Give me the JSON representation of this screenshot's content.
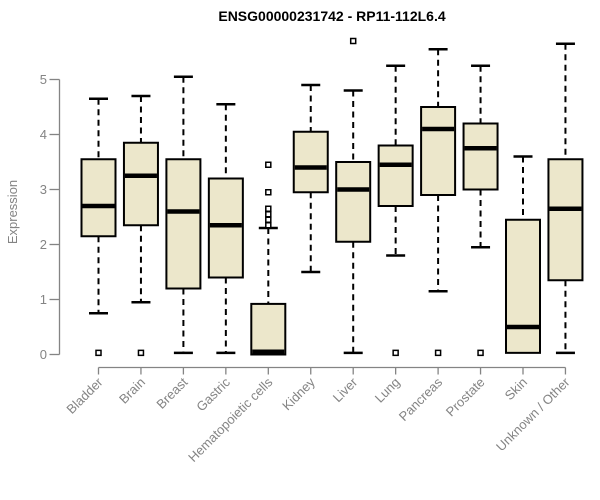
{
  "title": "ENSG00000231742 - RP11-112L6.4",
  "chart_data": {
    "type": "boxplot",
    "title": "ENSG00000231742 - RP11-112L6.4",
    "xlabel": "",
    "ylabel": "Expression",
    "ylim": [
      0,
      5.8
    ],
    "yticks": [
      0,
      1,
      2,
      3,
      4,
      5
    ],
    "grid": false,
    "legend": "none",
    "categories": [
      "Bladder",
      "Brain",
      "Breast",
      "Gastric",
      "Hematopoietic cells",
      "Kidney",
      "Liver",
      "Lung",
      "Pancreas",
      "Prostate",
      "Skin",
      "Unknown / Other"
    ],
    "boxes": [
      {
        "label": "Bladder",
        "whisker_low": 0.75,
        "q1": 2.15,
        "median": 2.7,
        "q3": 3.55,
        "whisker_high": 4.65,
        "outliers": [
          0.03
        ]
      },
      {
        "label": "Brain",
        "whisker_low": 0.95,
        "q1": 2.35,
        "median": 3.25,
        "q3": 3.85,
        "whisker_high": 4.7,
        "outliers": [
          0.03
        ]
      },
      {
        "label": "Breast",
        "whisker_low": 0.03,
        "q1": 1.2,
        "median": 2.6,
        "q3": 3.55,
        "whisker_high": 5.05,
        "outliers": []
      },
      {
        "label": "Gastric",
        "whisker_low": 0.03,
        "q1": 1.4,
        "median": 2.35,
        "q3": 3.2,
        "whisker_high": 4.55,
        "outliers": []
      },
      {
        "label": "Hematopoietic cells",
        "whisker_low": 0.0,
        "q1": 0.0,
        "median": 0.05,
        "q3": 0.92,
        "whisker_high": 2.3,
        "outliers": [
          2.35,
          2.45,
          2.55,
          2.65,
          2.95,
          3.45
        ]
      },
      {
        "label": "Kidney",
        "whisker_low": 1.5,
        "q1": 2.95,
        "median": 3.4,
        "q3": 4.05,
        "whisker_high": 4.9,
        "outliers": []
      },
      {
        "label": "Liver",
        "whisker_low": 0.03,
        "q1": 2.05,
        "median": 3.0,
        "q3": 3.5,
        "whisker_high": 4.8,
        "outliers": [
          5.7
        ]
      },
      {
        "label": "Lung",
        "whisker_low": 1.8,
        "q1": 2.7,
        "median": 3.45,
        "q3": 3.8,
        "whisker_high": 5.25,
        "outliers": [
          0.03
        ]
      },
      {
        "label": "Pancreas",
        "whisker_low": 1.15,
        "q1": 2.9,
        "median": 4.1,
        "q3": 4.5,
        "whisker_high": 5.55,
        "outliers": [
          0.03
        ]
      },
      {
        "label": "Prostate",
        "whisker_low": 1.95,
        "q1": 3.0,
        "median": 3.75,
        "q3": 4.2,
        "whisker_high": 5.25,
        "outliers": [
          0.03
        ]
      },
      {
        "label": "Skin",
        "whisker_low": 0.03,
        "q1": 0.03,
        "median": 0.5,
        "q3": 2.45,
        "whisker_high": 3.6,
        "outliers": []
      },
      {
        "label": "Unknown / Other",
        "whisker_low": 0.03,
        "q1": 1.35,
        "median": 2.65,
        "q3": 3.55,
        "whisker_high": 5.65,
        "outliers": []
      }
    ],
    "colors": {
      "box_fill": "#ece7cb",
      "box_border": "#000000",
      "median": "#000000",
      "whisker": "#000000",
      "outlier_fill": "#ffffff",
      "outlier_border": "#000000",
      "axis": "#848484",
      "tick_label": "#848484",
      "title": "#000000",
      "background": "#ffffff"
    }
  }
}
